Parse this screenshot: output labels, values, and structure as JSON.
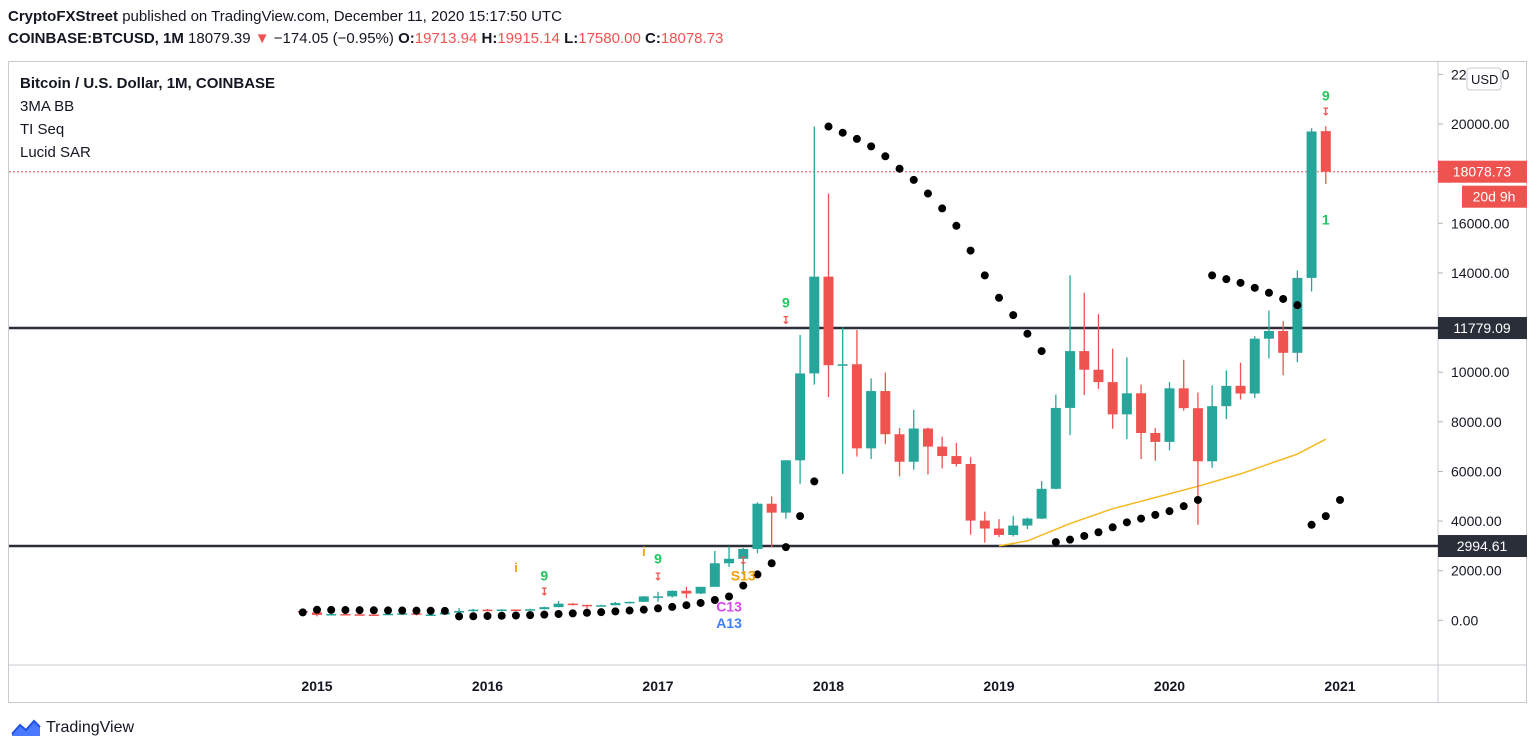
{
  "header": {
    "author": "CryptoFXStreet",
    "published": "published on TradingView.com, December 11, 2020 15:17:50 UTC",
    "symbol": "COINBASE:BTCUSD, 1M",
    "last": "18079.39",
    "change_arrow": "▼",
    "change": "−174.05 (−0.95%)",
    "o_label": "O:",
    "o_val": "19713.94",
    "h_label": "H:",
    "h_val": "19915.14",
    "l_label": "L:",
    "l_val": "17580.00",
    "c_label": "C:",
    "c_val": "18078.73"
  },
  "legend": {
    "title": "Bitcoin / U.S. Dollar, 1M, COINBASE",
    "ind1": "3MA BB",
    "ind2": "TI Seq",
    "ind3": "Lucid SAR"
  },
  "footer": {
    "brand": "TradingView"
  },
  "colors": {
    "up": "#26a69a",
    "down": "#ef5350",
    "sar": "#000000",
    "ma": "#f5b81f",
    "hline": "#2a2e39",
    "axis": "#131722",
    "seq_green": "#22c55e",
    "seq_orange": "#f59e0b",
    "seq_magenta": "#d946ef",
    "seq_blue": "#3b82f6"
  },
  "chart_data": {
    "type": "candlestick",
    "y_axis": {
      "unit": "USD",
      "min": -1800,
      "max": 22500,
      "ticks": [
        0,
        2000,
        4000,
        6000,
        8000,
        10000,
        12000,
        14000,
        16000,
        18000,
        20000,
        22000
      ],
      "tick_labels": [
        "0.00",
        "2000.00",
        "4000.00",
        "6000.00",
        "8000.00",
        "10000.00",
        "12000.00",
        "14000.00",
        "16000.00",
        "18000.00",
        "20000.00",
        "22000.00"
      ]
    },
    "x_axis": {
      "labels": [
        "2015",
        "2016",
        "2017",
        "2018",
        "2019",
        "2020",
        "2021"
      ]
    },
    "price_label": "18078.73",
    "countdown_label": "20d 9h",
    "hlines": [
      {
        "value": 11779.09,
        "label": "11779.09"
      },
      {
        "value": 2994.61,
        "label": "2994.61"
      }
    ],
    "candles": [
      {
        "t": "2014-12",
        "o": 376,
        "h": 425,
        "l": 300,
        "c": 320
      },
      {
        "t": "2015-01",
        "o": 320,
        "h": 320,
        "l": 160,
        "c": 218
      },
      {
        "t": "2015-02",
        "o": 218,
        "h": 280,
        "l": 212,
        "c": 254
      },
      {
        "t": "2015-03",
        "o": 254,
        "h": 300,
        "l": 235,
        "c": 244
      },
      {
        "t": "2015-04",
        "o": 244,
        "h": 261,
        "l": 216,
        "c": 236
      },
      {
        "t": "2015-05",
        "o": 236,
        "h": 247,
        "l": 226,
        "c": 230
      },
      {
        "t": "2015-06",
        "o": 230,
        "h": 267,
        "l": 218,
        "c": 264
      },
      {
        "t": "2015-07",
        "o": 264,
        "h": 317,
        "l": 253,
        "c": 283
      },
      {
        "t": "2015-08",
        "o": 283,
        "h": 290,
        "l": 198,
        "c": 231
      },
      {
        "t": "2015-09",
        "o": 231,
        "h": 245,
        "l": 225,
        "c": 236
      },
      {
        "t": "2015-10",
        "o": 236,
        "h": 330,
        "l": 235,
        "c": 312
      },
      {
        "t": "2015-11",
        "o": 312,
        "h": 500,
        "l": 300,
        "c": 378
      },
      {
        "t": "2015-12",
        "o": 378,
        "h": 465,
        "l": 345,
        "c": 430
      },
      {
        "t": "2016-01",
        "o": 430,
        "h": 460,
        "l": 350,
        "c": 378
      },
      {
        "t": "2016-02",
        "o": 378,
        "h": 445,
        "l": 365,
        "c": 437
      },
      {
        "t": "2016-03",
        "o": 437,
        "h": 440,
        "l": 400,
        "c": 416
      },
      {
        "t": "2016-04",
        "o": 416,
        "h": 470,
        "l": 410,
        "c": 448
      },
      {
        "t": "2016-05",
        "o": 448,
        "h": 550,
        "l": 437,
        "c": 531
      },
      {
        "t": "2016-06",
        "o": 531,
        "h": 780,
        "l": 525,
        "c": 673
      },
      {
        "t": "2016-07",
        "o": 673,
        "h": 700,
        "l": 600,
        "c": 624
      },
      {
        "t": "2016-08",
        "o": 624,
        "h": 630,
        "l": 470,
        "c": 575
      },
      {
        "t": "2016-09",
        "o": 575,
        "h": 630,
        "l": 570,
        "c": 609
      },
      {
        "t": "2016-10",
        "o": 609,
        "h": 740,
        "l": 605,
        "c": 701
      },
      {
        "t": "2016-11",
        "o": 701,
        "h": 755,
        "l": 680,
        "c": 745
      },
      {
        "t": "2016-12",
        "o": 745,
        "h": 980,
        "l": 740,
        "c": 964
      },
      {
        "t": "2017-01",
        "o": 964,
        "h": 1150,
        "l": 750,
        "c": 965
      },
      {
        "t": "2017-02",
        "o": 965,
        "h": 1210,
        "l": 920,
        "c": 1190
      },
      {
        "t": "2017-03",
        "o": 1190,
        "h": 1350,
        "l": 890,
        "c": 1080
      },
      {
        "t": "2017-04",
        "o": 1080,
        "h": 1350,
        "l": 1060,
        "c": 1350
      },
      {
        "t": "2017-05",
        "o": 1350,
        "h": 2800,
        "l": 1350,
        "c": 2300
      },
      {
        "t": "2017-06",
        "o": 2300,
        "h": 2980,
        "l": 2150,
        "c": 2480
      },
      {
        "t": "2017-07",
        "o": 2480,
        "h": 2920,
        "l": 1850,
        "c": 2875
      },
      {
        "t": "2017-08",
        "o": 2875,
        "h": 4750,
        "l": 2700,
        "c": 4700
      },
      {
        "t": "2017-09",
        "o": 4700,
        "h": 5000,
        "l": 2950,
        "c": 4340
      },
      {
        "t": "2017-10",
        "o": 4340,
        "h": 6450,
        "l": 4100,
        "c": 6450
      },
      {
        "t": "2017-11",
        "o": 6450,
        "h": 11500,
        "l": 5500,
        "c": 9950
      },
      {
        "t": "2017-12",
        "o": 9950,
        "h": 19900,
        "l": 9500,
        "c": 13850
      },
      {
        "t": "2018-01",
        "o": 13850,
        "h": 17200,
        "l": 9000,
        "c": 10280
      },
      {
        "t": "2018-02",
        "o": 10280,
        "h": 11800,
        "l": 5900,
        "c": 10320
      },
      {
        "t": "2018-03",
        "o": 10320,
        "h": 11700,
        "l": 6600,
        "c": 6930
      },
      {
        "t": "2018-04",
        "o": 6930,
        "h": 9750,
        "l": 6500,
        "c": 9240
      },
      {
        "t": "2018-05",
        "o": 9240,
        "h": 9990,
        "l": 7100,
        "c": 7500
      },
      {
        "t": "2018-06",
        "o": 7500,
        "h": 7750,
        "l": 5800,
        "c": 6390
      },
      {
        "t": "2018-07",
        "o": 6390,
        "h": 8480,
        "l": 6070,
        "c": 7730
      },
      {
        "t": "2018-08",
        "o": 7730,
        "h": 7770,
        "l": 5880,
        "c": 7000
      },
      {
        "t": "2018-09",
        "o": 7000,
        "h": 7400,
        "l": 6120,
        "c": 6620
      },
      {
        "t": "2018-10",
        "o": 6620,
        "h": 7150,
        "l": 6200,
        "c": 6300
      },
      {
        "t": "2018-11",
        "o": 6300,
        "h": 6580,
        "l": 3450,
        "c": 4020
      },
      {
        "t": "2018-12",
        "o": 4020,
        "h": 4380,
        "l": 3130,
        "c": 3700
      },
      {
        "t": "2019-01",
        "o": 3700,
        "h": 4080,
        "l": 3350,
        "c": 3440
      },
      {
        "t": "2019-02",
        "o": 3440,
        "h": 4210,
        "l": 3380,
        "c": 3820
      },
      {
        "t": "2019-03",
        "o": 3820,
        "h": 4140,
        "l": 3680,
        "c": 4100
      },
      {
        "t": "2019-04",
        "o": 4100,
        "h": 5610,
        "l": 4080,
        "c": 5300
      },
      {
        "t": "2019-05",
        "o": 5300,
        "h": 9100,
        "l": 5280,
        "c": 8560
      },
      {
        "t": "2019-06",
        "o": 8560,
        "h": 13900,
        "l": 7460,
        "c": 10850
      },
      {
        "t": "2019-07",
        "o": 10850,
        "h": 13200,
        "l": 9080,
        "c": 10100
      },
      {
        "t": "2019-08",
        "o": 10100,
        "h": 12340,
        "l": 9330,
        "c": 9600
      },
      {
        "t": "2019-09",
        "o": 9600,
        "h": 10950,
        "l": 7720,
        "c": 8300
      },
      {
        "t": "2019-10",
        "o": 8300,
        "h": 10600,
        "l": 7300,
        "c": 9150
      },
      {
        "t": "2019-11",
        "o": 9150,
        "h": 9500,
        "l": 6500,
        "c": 7550
      },
      {
        "t": "2019-12",
        "o": 7550,
        "h": 7750,
        "l": 6430,
        "c": 7190
      },
      {
        "t": "2020-01",
        "o": 7190,
        "h": 9600,
        "l": 6850,
        "c": 9350
      },
      {
        "t": "2020-02",
        "o": 9350,
        "h": 10500,
        "l": 8450,
        "c": 8550
      },
      {
        "t": "2020-03",
        "o": 8550,
        "h": 9180,
        "l": 3850,
        "c": 6410
      },
      {
        "t": "2020-04",
        "o": 6410,
        "h": 9470,
        "l": 6150,
        "c": 8630
      },
      {
        "t": "2020-05",
        "o": 8630,
        "h": 10070,
        "l": 8110,
        "c": 9450
      },
      {
        "t": "2020-06",
        "o": 9450,
        "h": 10380,
        "l": 8900,
        "c": 9140
      },
      {
        "t": "2020-07",
        "o": 9140,
        "h": 11450,
        "l": 8960,
        "c": 11350
      },
      {
        "t": "2020-08",
        "o": 11350,
        "h": 12480,
        "l": 10550,
        "c": 11660
      },
      {
        "t": "2020-09",
        "o": 11660,
        "h": 12060,
        "l": 9880,
        "c": 10780
      },
      {
        "t": "2020-10",
        "o": 10780,
        "h": 14100,
        "l": 10400,
        "c": 13800
      },
      {
        "t": "2020-11",
        "o": 13800,
        "h": 19830,
        "l": 13250,
        "c": 19700
      },
      {
        "t": "2020-12",
        "o": 19713.94,
        "h": 19915.14,
        "l": 17580,
        "c": 18078.73
      }
    ],
    "sar": [
      {
        "t": "2014-12",
        "v": 320
      },
      {
        "t": "2015-01",
        "v": 425
      },
      {
        "t": "2015-02",
        "v": 420
      },
      {
        "t": "2015-03",
        "v": 415
      },
      {
        "t": "2015-04",
        "v": 410
      },
      {
        "t": "2015-05",
        "v": 405
      },
      {
        "t": "2015-06",
        "v": 400
      },
      {
        "t": "2015-07",
        "v": 395
      },
      {
        "t": "2015-08",
        "v": 390
      },
      {
        "t": "2015-09",
        "v": 385
      },
      {
        "t": "2015-10",
        "v": 380
      },
      {
        "t": "2015-11",
        "v": 160
      },
      {
        "t": "2015-12",
        "v": 165
      },
      {
        "t": "2016-01",
        "v": 175
      },
      {
        "t": "2016-02",
        "v": 185
      },
      {
        "t": "2016-03",
        "v": 195
      },
      {
        "t": "2016-04",
        "v": 210
      },
      {
        "t": "2016-05",
        "v": 230
      },
      {
        "t": "2016-06",
        "v": 255
      },
      {
        "t": "2016-07",
        "v": 280
      },
      {
        "t": "2016-08",
        "v": 305
      },
      {
        "t": "2016-09",
        "v": 330
      },
      {
        "t": "2016-10",
        "v": 360
      },
      {
        "t": "2016-11",
        "v": 395
      },
      {
        "t": "2016-12",
        "v": 430
      },
      {
        "t": "2017-01",
        "v": 480
      },
      {
        "t": "2017-02",
        "v": 540
      },
      {
        "t": "2017-03",
        "v": 610
      },
      {
        "t": "2017-04",
        "v": 700
      },
      {
        "t": "2017-05",
        "v": 820
      },
      {
        "t": "2017-06",
        "v": 960
      },
      {
        "t": "2017-07",
        "v": 1400
      },
      {
        "t": "2017-08",
        "v": 1850
      },
      {
        "t": "2017-09",
        "v": 2300
      },
      {
        "t": "2017-10",
        "v": 2950
      },
      {
        "t": "2017-11",
        "v": 4200
      },
      {
        "t": "2017-12",
        "v": 5600
      },
      {
        "t": "2018-01",
        "v": 19900
      },
      {
        "t": "2018-02",
        "v": 19650
      },
      {
        "t": "2018-03",
        "v": 19400
      },
      {
        "t": "2018-04",
        "v": 19100
      },
      {
        "t": "2018-05",
        "v": 18700
      },
      {
        "t": "2018-06",
        "v": 18200
      },
      {
        "t": "2018-07",
        "v": 17750
      },
      {
        "t": "2018-08",
        "v": 17200
      },
      {
        "t": "2018-09",
        "v": 16600
      },
      {
        "t": "2018-10",
        "v": 15900
      },
      {
        "t": "2018-11",
        "v": 14900
      },
      {
        "t": "2018-12",
        "v": 13900
      },
      {
        "t": "2019-01",
        "v": 13000
      },
      {
        "t": "2019-02",
        "v": 12300
      },
      {
        "t": "2019-03",
        "v": 11550
      },
      {
        "t": "2019-04",
        "v": 10850
      },
      {
        "t": "2019-05",
        "v": 3150
      },
      {
        "t": "2019-06",
        "v": 3250
      },
      {
        "t": "2019-07",
        "v": 3400
      },
      {
        "t": "2019-08",
        "v": 3550
      },
      {
        "t": "2019-09",
        "v": 3750
      },
      {
        "t": "2019-10",
        "v": 3950
      },
      {
        "t": "2019-11",
        "v": 4100
      },
      {
        "t": "2019-12",
        "v": 4250
      },
      {
        "t": "2020-01",
        "v": 4400
      },
      {
        "t": "2020-02",
        "v": 4600
      },
      {
        "t": "2020-03",
        "v": 4850
      },
      {
        "t": "2020-04",
        "v": 13900
      },
      {
        "t": "2020-05",
        "v": 13750
      },
      {
        "t": "2020-06",
        "v": 13600
      },
      {
        "t": "2020-07",
        "v": 13400
      },
      {
        "t": "2020-08",
        "v": 13200
      },
      {
        "t": "2020-09",
        "v": 12950
      },
      {
        "t": "2020-10",
        "v": 12700
      },
      {
        "t": "2020-11",
        "v": 3850
      },
      {
        "t": "2020-12",
        "v": 4200
      },
      {
        "t": "2021-01",
        "v": 4850
      }
    ],
    "ma": [
      {
        "t": "2019-01",
        "v": 3000
      },
      {
        "t": "2019-03",
        "v": 3200
      },
      {
        "t": "2019-06",
        "v": 3900
      },
      {
        "t": "2019-09",
        "v": 4500
      },
      {
        "t": "2019-12",
        "v": 4950
      },
      {
        "t": "2020-03",
        "v": 5400
      },
      {
        "t": "2020-06",
        "v": 5900
      },
      {
        "t": "2020-09",
        "v": 6500
      },
      {
        "t": "2020-10",
        "v": 6700
      },
      {
        "t": "2020-12",
        "v": 7300
      }
    ],
    "annotations": [
      {
        "t": "2016-03",
        "v": 1950,
        "text": "i",
        "color": "seq_orange",
        "size": 13
      },
      {
        "t": "2016-05",
        "v": 1600,
        "text": "9",
        "color": "seq_green",
        "size": 14
      },
      {
        "t": "2016-05",
        "v": 1000,
        "text": "↧",
        "color": "down",
        "size": 11
      },
      {
        "t": "2017-00",
        "v": 2600,
        "text": "i",
        "color": "seq_orange",
        "size": 13
      },
      {
        "t": "2017-01",
        "v": 2300,
        "text": "9",
        "color": "seq_green",
        "size": 14
      },
      {
        "t": "2017-01",
        "v": 1600,
        "text": "↧",
        "color": "down",
        "size": 11
      },
      {
        "t": "2017-06",
        "v": 350,
        "text": "C13",
        "color": "seq_magenta",
        "size": 14
      },
      {
        "t": "2017-06",
        "v": -300,
        "text": "A13",
        "color": "seq_blue",
        "size": 14
      },
      {
        "t": "2017-07",
        "v": 1600,
        "text": "S13",
        "color": "seq_orange",
        "size": 14
      },
      {
        "t": "2017-07",
        "v": 2250,
        "text": "↧",
        "color": "down",
        "size": 11
      },
      {
        "t": "2017-10",
        "v": 12600,
        "text": "9",
        "color": "seq_green",
        "size": 14
      },
      {
        "t": "2017-10",
        "v": 11950,
        "text": "↧",
        "color": "down",
        "size": 11
      },
      {
        "t": "2020-12",
        "v": 20950,
        "text": "9",
        "color": "seq_green",
        "size": 14
      },
      {
        "t": "2020-12",
        "v": 20350,
        "text": "↧",
        "color": "down",
        "size": 11
      },
      {
        "t": "2020-12",
        "v": 15950,
        "text": "1",
        "color": "seq_green",
        "size": 14
      }
    ]
  }
}
